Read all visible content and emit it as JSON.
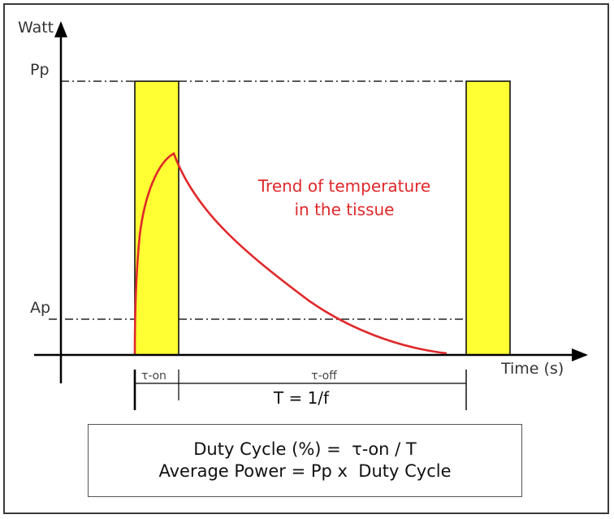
{
  "axes": {
    "y_label": "Watt",
    "x_label": "Time (s)"
  },
  "levels": {
    "peak_label": "Pp",
    "average_label": "Ap"
  },
  "pulse": {
    "on_label": "τ-on",
    "off_label": "τ-off",
    "period_label": "T = 1/f"
  },
  "temperature": {
    "label_line1": "Trend of temperature",
    "label_line2": "in the tissue"
  },
  "formulas": {
    "duty_cycle": "Duty Cycle (%) =  τ-on / T",
    "average_power": "Average Power = Pp x  Duty Cycle"
  },
  "colors": {
    "pulse_fill": "#ffff33",
    "temperature_curve": "#e0282a",
    "axis": "#000000"
  }
}
